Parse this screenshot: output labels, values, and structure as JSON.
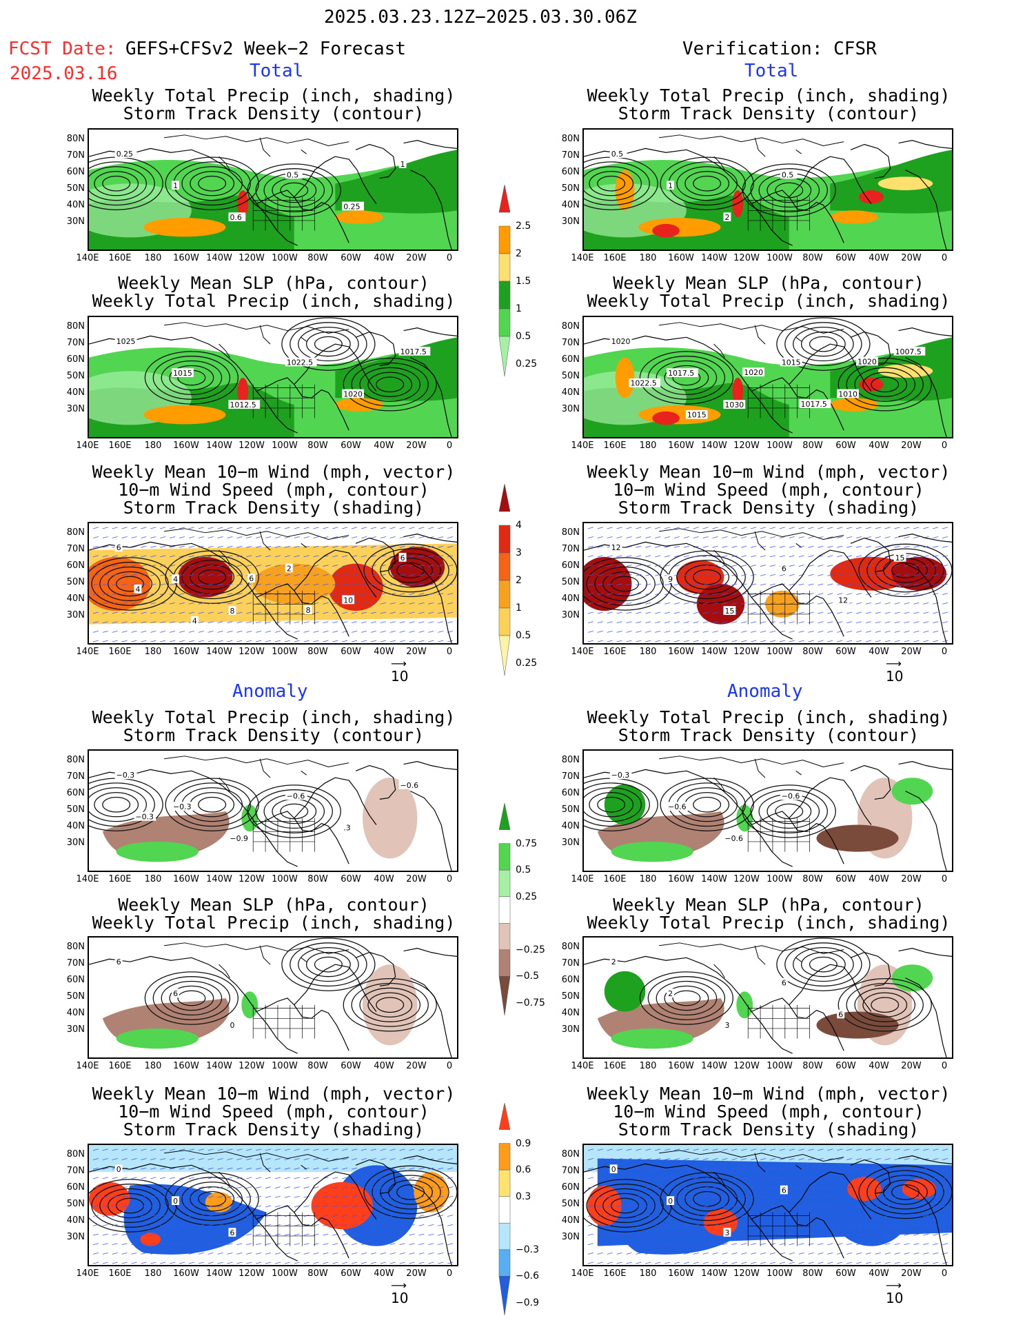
{
  "header": {
    "period": "2025.03.23.12Z−2025.03.30.06Z",
    "fcst_label": "FCST Date:",
    "model": "GEFS+CFSv2 Week−2 Forecast",
    "fcst_date": "2025.03.16",
    "verification": "Verification: CFSR",
    "total": "Total",
    "anomaly": "Anomaly"
  },
  "panel_titles": {
    "precip_storm": [
      "Weekly Total Precip (inch, shading)",
      "Storm Track Density (contour)"
    ],
    "slp_precip": [
      "Weekly Mean SLP (hPa, contour)",
      "Weekly Total Precip (inch, shading)"
    ],
    "wind": [
      "Weekly Mean 10−m Wind (mph, vector)",
      "10−m Wind Speed (mph, contour)",
      "Storm Track Density (shading)"
    ]
  },
  "lat_labels": [
    "80N",
    "70N",
    "60N",
    "50N",
    "40N",
    "30N"
  ],
  "lon_labels": [
    "140E",
    "160E",
    "180",
    "160W",
    "140W",
    "120W",
    "100W",
    "80W",
    "60W",
    "40W",
    "20W",
    "0"
  ],
  "vector_ref": "10",
  "colorbars": {
    "precip_total": {
      "labels": [
        "2.5",
        "2",
        "1.5",
        "1",
        "0.5",
        "0.25"
      ],
      "colors": [
        "#e8221c",
        "#ff9c00",
        "#fde06e",
        "#1ea11e",
        "#52d652",
        "#a5f0a5"
      ]
    },
    "storm_total": {
      "labels": [
        "4",
        "3",
        "2",
        "1",
        "0.5",
        "0.25"
      ],
      "colors": [
        "#a50e0e",
        "#e02b12",
        "#f56314",
        "#f7a21f",
        "#fbd15a",
        "#fff3a8"
      ]
    },
    "precip_anom": {
      "labels": [
        "0.75",
        "0.5",
        "0.25",
        "−0.25",
        "−0.5",
        "−0.75"
      ],
      "colors": [
        "#1ea11e",
        "#52d652",
        "#a5f0a5",
        "#ffffff",
        "#e2c3b7",
        "#b08273",
        "#7a4a3a"
      ]
    },
    "storm_anom": {
      "labels": [
        "0.9",
        "0.6",
        "0.3",
        "−0.3",
        "−0.6",
        "−0.9"
      ],
      "colors": [
        "#ff3e1a",
        "#ff9c1a",
        "#ffe36e",
        "#ffffff",
        "#b5e6fa",
        "#58aef2",
        "#1f5fe0"
      ]
    }
  },
  "contour_labels": {
    "l1": [
      "0.25",
      "1",
      "0.6",
      "0.5",
      "0.25",
      "1"
    ],
    "r1": [
      "0.5",
      "1",
      "2",
      "0.5"
    ],
    "l2": [
      "1025",
      "1015",
      "1012.5",
      "1022.5",
      "1020",
      "1017.5"
    ],
    "r2": [
      "1020",
      "1017.5",
      "1030",
      "1015",
      "1010",
      "1007.5",
      "1022.5",
      "1015",
      "1020",
      "1017.5",
      "1020"
    ],
    "l3": [
      "6",
      "4",
      "8",
      "2",
      "10",
      "6",
      "4",
      "4",
      "6",
      "8"
    ],
    "r3": [
      "12",
      "9",
      "15",
      "6",
      "12",
      "15"
    ],
    "l4": [
      "−0.3",
      "−0.3",
      "−0.9",
      "−0.6",
      ".3",
      "−0.6",
      "−0.3"
    ],
    "r4": [
      "−0.3",
      "−0.6",
      "−0.6",
      "−0.6"
    ],
    "l5": [
      "6",
      "6",
      "0"
    ],
    "r5": [
      "2",
      "2",
      "3",
      "6",
      "6"
    ],
    "l6": [
      "0",
      "0",
      "6"
    ],
    "r6": [
      "0",
      "0",
      "3",
      "6"
    ]
  }
}
